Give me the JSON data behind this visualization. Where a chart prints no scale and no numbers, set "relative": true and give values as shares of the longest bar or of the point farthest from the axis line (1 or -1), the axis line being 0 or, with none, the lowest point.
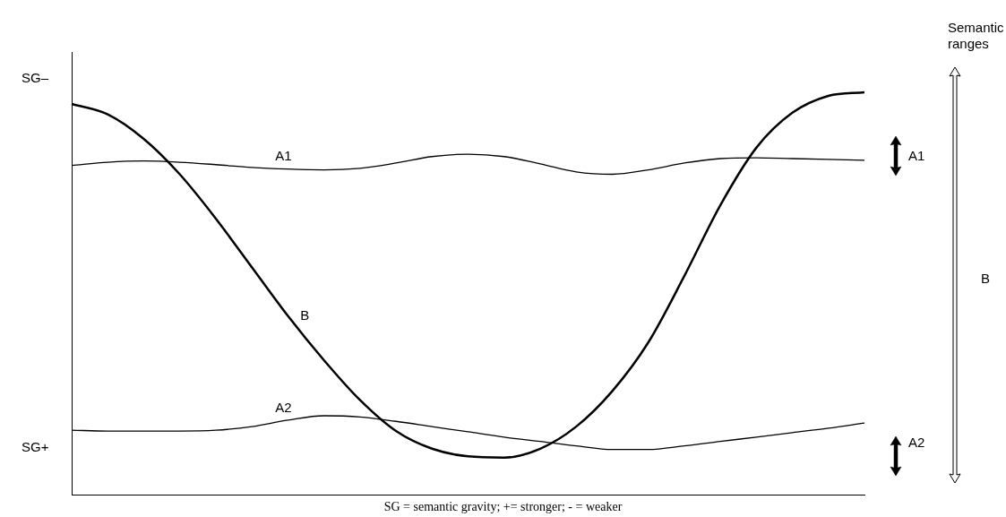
{
  "chart_data": {
    "type": "line",
    "relative": true,
    "legend": false,
    "grid": false,
    "marker": "none",
    "categories": [
      null,
      null,
      null,
      null,
      null,
      null,
      null,
      null,
      null,
      null,
      null,
      null,
      null,
      null,
      null,
      null,
      null,
      null,
      null,
      null,
      null,
      null,
      null
    ],
    "series": [
      {
        "name": "A1",
        "color": "#000000",
        "values": [
          0.818,
          0.826,
          0.829,
          0.826,
          0.82,
          0.813,
          0.809,
          0.807,
          0.811,
          0.824,
          0.84,
          0.846,
          0.84,
          0.822,
          0.802,
          0.796,
          0.807,
          0.824,
          0.835,
          0.837,
          0.835,
          0.833,
          0.831
        ]
      },
      {
        "name": "B",
        "color": "#000000",
        "values": [
          0.971,
          0.945,
          0.884,
          0.796,
          0.686,
          0.565,
          0.444,
          0.334,
          0.235,
          0.158,
          0.114,
          0.095,
          0.092,
          0.114,
          0.169,
          0.257,
          0.378,
          0.543,
          0.719,
          0.862,
          0.949,
          0.991,
          1
        ]
      },
      {
        "name": "A2",
        "color": "#000000",
        "values": [
          0.16,
          0.158,
          0.158,
          0.158,
          0.16,
          0.169,
          0.185,
          0.196,
          0.193,
          0.182,
          0.169,
          0.156,
          0.143,
          0.132,
          0.121,
          0.112,
          0.112,
          0.121,
          0.132,
          0.143,
          0.154,
          0.165,
          0.178
        ]
      }
    ],
    "annotations": [
      "SG–",
      "SG+",
      "Semantic ranges",
      "A1",
      "A2",
      "B",
      "SG = semantic gravity; += stronger; - = weaker"
    ]
  }
}
